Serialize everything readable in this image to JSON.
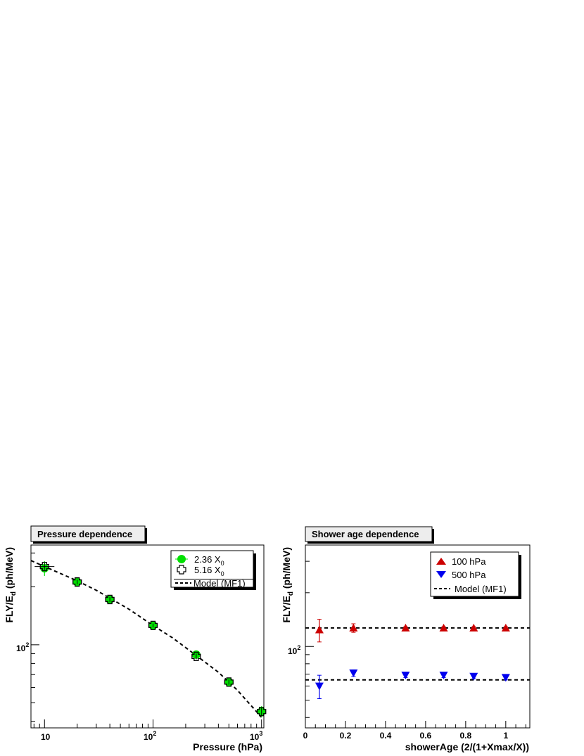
{
  "chart_data": [
    {
      "type": "scatter",
      "title": "Pressure dependence",
      "xlabel": "Pressure (hPa)",
      "ylabel": "FLY/E_d (ph/MeV)",
      "ylabel_main": "FLY/E",
      "ylabel_sub": "d",
      "ylabel_tail": " (ph/MeV)",
      "x_scale": "log",
      "y_scale": "log",
      "xlim": [
        7.5,
        1050
      ],
      "ylim": [
        37,
        330
      ],
      "x_ticks": [
        {
          "value": 10,
          "base": "10",
          "exp": ""
        },
        {
          "value": 100,
          "base": "10",
          "exp": "2"
        },
        {
          "value": 1000,
          "base": "10",
          "exp": "3"
        }
      ],
      "y_ticks": [
        {
          "value": 100,
          "base": "10",
          "exp": "2"
        }
      ],
      "legend_position": "top-right",
      "series": [
        {
          "name": "2.36 X_0",
          "label_main": "2.36 X",
          "label_sub": "0",
          "marker": "circle",
          "color": "#00e000",
          "x": [
            10,
            20,
            40,
            100,
            250,
            500,
            1000
          ],
          "y": [
            250,
            212,
            172,
            126,
            89,
            64,
            45
          ],
          "yerr": [
            22,
            8,
            6,
            4,
            4,
            3,
            3
          ]
        },
        {
          "name": "5.16 X_0",
          "label_main": "5.16 X",
          "label_sub": "0",
          "marker": "open-cross",
          "color": "#000000",
          "x": [
            10,
            20,
            40,
            100,
            250,
            500,
            1000
          ],
          "y": [
            255,
            212,
            172,
            126,
            87,
            64,
            45
          ],
          "yerr": [
            10,
            6,
            5,
            3,
            3,
            2,
            2
          ]
        },
        {
          "name": "Model (MF1)",
          "type": "line",
          "style": "dashed",
          "color": "#000000",
          "x": [
            7.5,
            10,
            15,
            20,
            30,
            40,
            60,
            100,
            150,
            250,
            400,
            600,
            1000
          ],
          "y": [
            274,
            255,
            231,
            215,
            192,
            175,
            153,
            126,
            109,
            88,
            72,
            58,
            42
          ]
        }
      ]
    },
    {
      "type": "scatter",
      "title": "Shower age dependence",
      "xlabel": "showerAge (2/(1+Xmax/X))",
      "ylabel": "FLY/E_d (ph/MeV)",
      "ylabel_main": "FLY/E",
      "ylabel_sub": "d",
      "ylabel_tail": " (ph/MeV)",
      "x_scale": "linear",
      "y_scale": "log",
      "xlim": [
        0,
        1.12
      ],
      "ylim": [
        35,
        370
      ],
      "x_ticks": [
        {
          "value": 0,
          "label": "0"
        },
        {
          "value": 0.2,
          "label": "0.2"
        },
        {
          "value": 0.4,
          "label": "0.4"
        },
        {
          "value": 0.6,
          "label": "0.6"
        },
        {
          "value": 0.8,
          "label": "0.8"
        },
        {
          "value": 1,
          "label": "1"
        }
      ],
      "y_ticks": [
        {
          "value": 100,
          "base": "10",
          "exp": "2"
        }
      ],
      "legend_position": "top-right",
      "series": [
        {
          "name": "100 hPa",
          "marker": "triangle-up",
          "color": "#cc0000",
          "x": [
            0.07,
            0.24,
            0.5,
            0.69,
            0.84,
            1.0
          ],
          "y": [
            124,
            127,
            127,
            127,
            127,
            127
          ],
          "yerr": [
            18,
            7,
            2,
            2,
            2,
            2
          ]
        },
        {
          "name": "500 hPa",
          "marker": "triangle-down",
          "color": "#0000ee",
          "x": [
            0.07,
            0.24,
            0.5,
            0.69,
            0.84,
            1.0
          ],
          "y": [
            60,
            71,
            69,
            69,
            68,
            67
          ],
          "yerr": [
            9,
            3,
            2,
            2,
            2,
            2
          ]
        },
        {
          "name": "Model (MF1)",
          "type": "hline",
          "style": "dashed",
          "color": "#000000",
          "values": [
            127,
            65
          ]
        }
      ]
    }
  ]
}
